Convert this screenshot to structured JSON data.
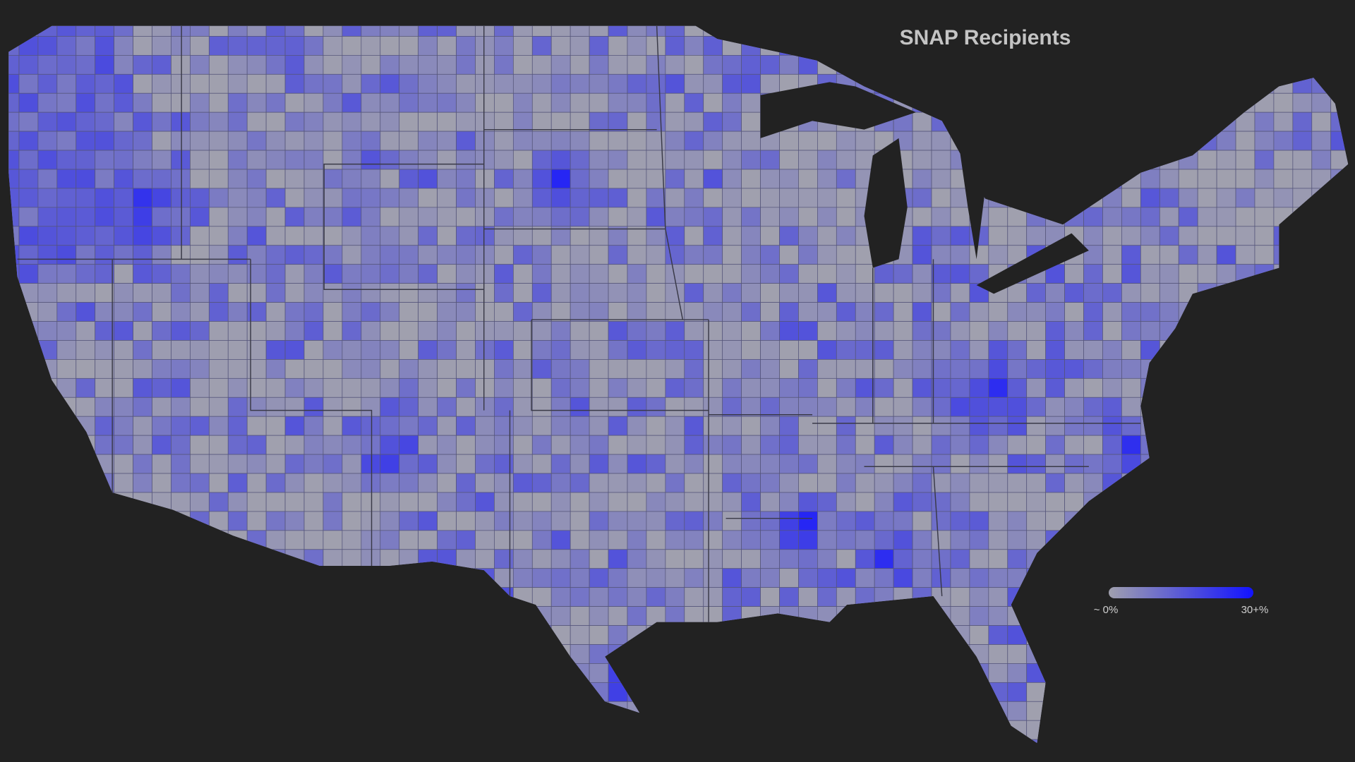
{
  "title": "SNAP Recipients",
  "legend": {
    "min_label": "~ 0%",
    "max_label": "30+%",
    "colors": [
      "#a0a0ae",
      "#1212ff"
    ]
  }
}
